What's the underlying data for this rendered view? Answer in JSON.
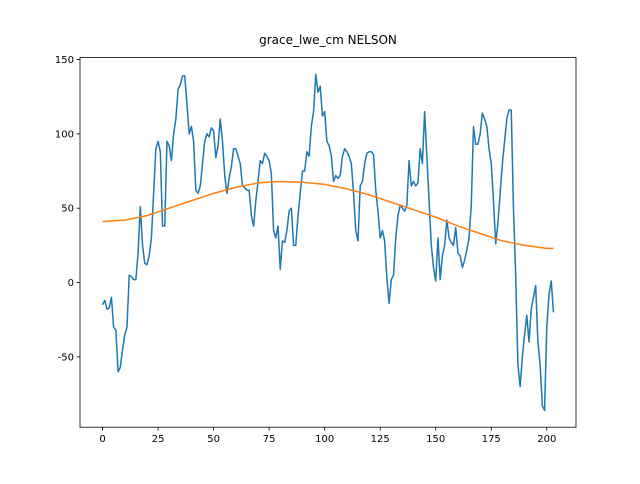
{
  "chart_data": {
    "type": "line",
    "title": "grace_lwe_cm NELSON",
    "series": [
      {
        "color": "#1f77b4",
        "x": [
          0,
          1,
          2,
          3,
          4,
          5,
          6,
          7,
          8,
          9,
          10,
          11,
          12,
          13,
          14,
          15,
          16,
          17,
          18,
          19,
          20,
          21,
          22,
          23,
          24,
          25,
          26,
          27,
          28,
          29,
          30,
          31,
          32,
          33,
          34,
          35,
          36,
          37,
          38,
          39,
          40,
          41,
          42,
          43,
          44,
          45,
          46,
          47,
          48,
          49,
          50,
          51,
          52,
          53,
          54,
          55,
          56,
          57,
          58,
          59,
          60,
          61,
          62,
          63,
          64,
          65,
          66,
          67,
          68,
          69,
          70,
          71,
          72,
          73,
          74,
          75,
          76,
          77,
          78,
          79,
          80,
          81,
          82,
          83,
          84,
          85,
          86,
          87,
          88,
          89,
          90,
          91,
          92,
          93,
          94,
          95,
          96,
          97,
          98,
          99,
          100,
          101,
          102,
          103,
          104,
          105,
          106,
          107,
          108,
          109,
          110,
          111,
          112,
          113,
          114,
          115,
          116,
          117,
          118,
          119,
          120,
          121,
          122,
          123,
          124,
          125,
          126,
          127,
          128,
          129,
          130,
          131,
          132,
          133,
          134,
          135,
          136,
          137,
          138,
          139,
          140,
          141,
          142,
          143,
          144,
          145,
          146,
          147,
          148,
          149,
          150,
          151,
          152,
          153,
          154,
          155,
          156,
          157,
          158,
          159,
          160,
          161,
          162,
          163,
          164,
          165,
          166,
          167,
          168,
          169,
          170,
          171,
          172,
          173,
          174,
          175,
          176,
          177,
          178,
          179,
          180,
          181,
          182,
          183,
          184,
          185,
          186,
          187,
          188,
          189,
          190,
          191,
          192,
          193,
          194,
          195,
          196,
          197,
          198,
          199,
          200,
          201,
          202,
          203
        ],
        "values": [
          -15,
          -12,
          -18,
          -17,
          -10,
          -30,
          -32,
          -60,
          -57,
          -45,
          -35,
          -30,
          5,
          4,
          2,
          2,
          20,
          51,
          25,
          13,
          12,
          18,
          30,
          60,
          90,
          95,
          88,
          38,
          38,
          95,
          92,
          82,
          100,
          110,
          130,
          133,
          139,
          139,
          120,
          100,
          105,
          95,
          62,
          60,
          65,
          80,
          95,
          100,
          98,
          104,
          102,
          84,
          92,
          110,
          95,
          72,
          60,
          70,
          78,
          90,
          90,
          85,
          80,
          65,
          64,
          62,
          62,
          45,
          38,
          55,
          68,
          82,
          80,
          87,
          85,
          82,
          73,
          35,
          30,
          38,
          9,
          28,
          27,
          35,
          48,
          50,
          25,
          25,
          45,
          60,
          75,
          75,
          88,
          85,
          105,
          115,
          140,
          128,
          132,
          112,
          115,
          95,
          92,
          85,
          68,
          72,
          70,
          72,
          85,
          90,
          88,
          85,
          80,
          60,
          35,
          28,
          65,
          68,
          80,
          87,
          88,
          88,
          86,
          62,
          48,
          30,
          35,
          28,
          3,
          -14,
          2,
          5,
          30,
          45,
          52,
          50,
          48,
          52,
          82,
          65,
          68,
          65,
          67,
          90,
          80,
          115,
          85,
          55,
          25,
          10,
          1,
          30,
          2,
          18,
          25,
          42,
          30,
          27,
          25,
          37,
          20,
          18,
          10,
          15,
          22,
          30,
          52,
          105,
          93,
          93,
          100,
          114,
          110,
          105,
          90,
          80,
          55,
          26,
          40,
          60,
          80,
          95,
          110,
          116,
          116,
          50,
          5,
          -55,
          -70,
          -50,
          -35,
          -22,
          -40,
          -18,
          -10,
          -2,
          -40,
          -55,
          -83,
          -86,
          -30,
          -8,
          1,
          -20
        ]
      },
      {
        "color": "#ff7f0e",
        "x": [
          0,
          10,
          20,
          30,
          40,
          50,
          60,
          70,
          80,
          90,
          100,
          110,
          120,
          130,
          140,
          150,
          160,
          170,
          180,
          190,
          200,
          203
        ],
        "values": [
          41,
          42,
          45,
          50,
          55,
          60,
          64,
          67,
          68,
          67.5,
          66,
          63,
          59,
          54,
          49,
          44,
          38,
          33,
          28,
          25,
          23,
          23
        ]
      }
    ],
    "xlim": [
      -10.15,
      213.15
    ],
    "xticks": [
      0,
      25,
      50,
      75,
      100,
      125,
      150,
      175,
      200
    ],
    "ylim": [
      -97.3,
      151.3
    ],
    "yticks": [
      -50,
      0,
      50,
      100,
      150
    ]
  }
}
